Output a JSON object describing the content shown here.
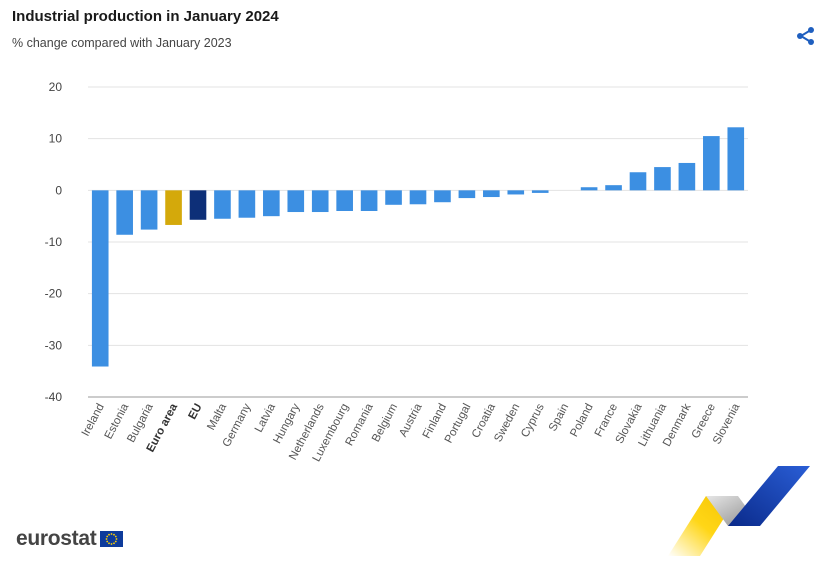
{
  "header": {
    "title": "Industrial production in January 2024",
    "subtitle": "% change compared with January 2023"
  },
  "share": {
    "icon": "share-icon"
  },
  "brand": {
    "text": "eurostat",
    "icon": "eu-flag-icon"
  },
  "colors": {
    "country": "#3c8fe2",
    "euro_area": "#d4a90b",
    "eu": "#0d2f78",
    "grid": "#e3e3e3",
    "axis": "#999999"
  },
  "chart_data": {
    "type": "bar",
    "title": "Industrial production in January 2024",
    "subtitle": "% change compared with January 2023",
    "categories": [
      "Ireland",
      "Estonia",
      "Bulgaria",
      "Euro area",
      "EU",
      "Malta",
      "Germany",
      "Latvia",
      "Hungary",
      "Netherlands",
      "Luxembourg",
      "Romania",
      "Belgium",
      "Austria",
      "Finland",
      "Portugal",
      "Croatia",
      "Sweden",
      "Cyprus",
      "Spain",
      "Poland",
      "France",
      "Slovakia",
      "Lithuania",
      "Denmark",
      "Greece",
      "Slovenia"
    ],
    "values": [
      -34.1,
      -8.6,
      -7.6,
      -6.7,
      -5.7,
      -5.5,
      -5.3,
      -5.0,
      -4.2,
      -4.2,
      -4.0,
      -4.0,
      -2.8,
      -2.7,
      -2.3,
      -1.5,
      -1.3,
      -0.8,
      -0.5,
      0.0,
      0.6,
      1.0,
      3.5,
      4.5,
      5.3,
      10.5,
      12.2
    ],
    "highlight": {
      "Euro area": "euro_area",
      "EU": "eu"
    },
    "bold_categories": [
      "Euro area",
      "EU"
    ],
    "yticks": [
      20,
      10,
      0,
      -10,
      -20,
      -30,
      -40
    ],
    "ylim": [
      -40,
      20
    ],
    "xlabel": "",
    "ylabel": "",
    "grid": true,
    "legend": "none"
  }
}
